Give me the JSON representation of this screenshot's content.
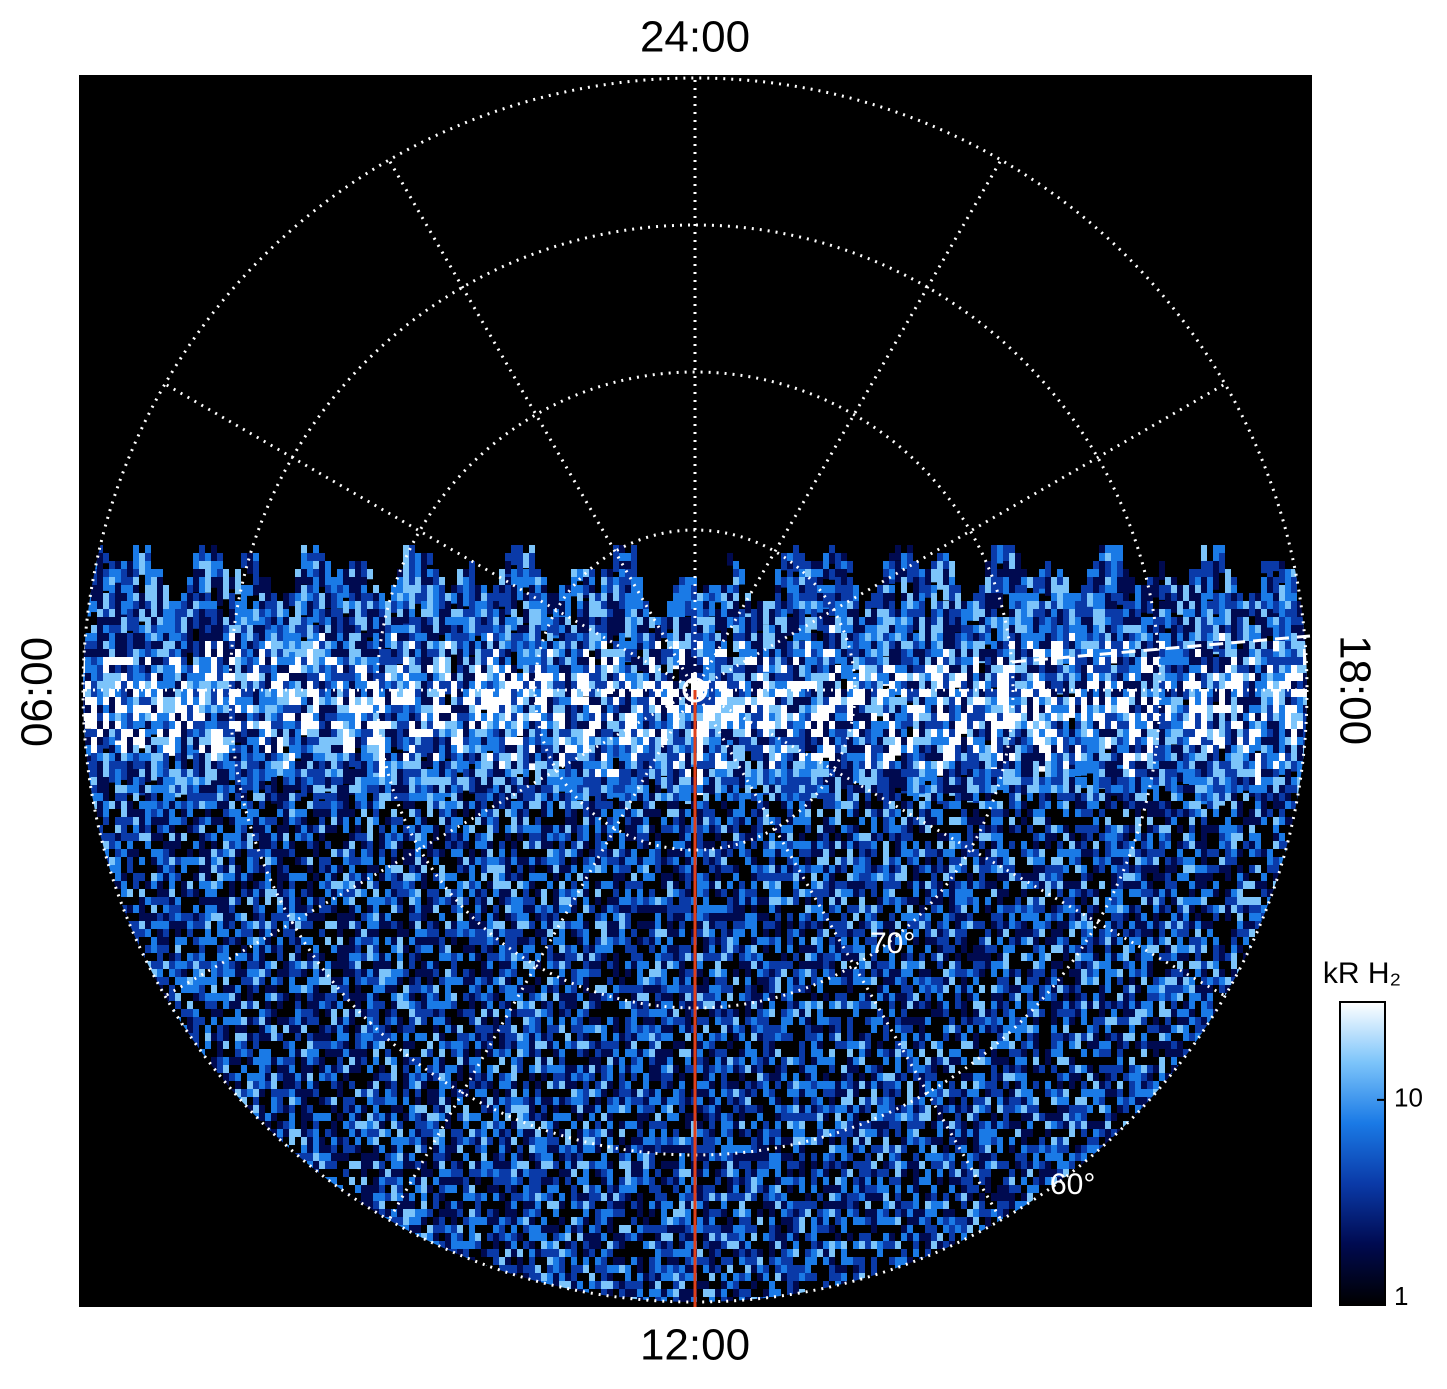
{
  "chart_data": {
    "type": "polar-map",
    "time_labels": {
      "top": "24:00",
      "left": "06:00",
      "bottom": "12:00",
      "right": "18:00"
    },
    "lat_labels": [
      "70°",
      "60°"
    ],
    "colorbar": {
      "label": "kR H₂",
      "lim": [
        1,
        30
      ],
      "ticks": [
        1,
        10
      ],
      "log": true,
      "colors": [
        "#000000",
        "#000a50",
        "#0a3aa8",
        "#1a7ae6",
        "#7cc4fa",
        "#ffffff"
      ]
    }
  }
}
